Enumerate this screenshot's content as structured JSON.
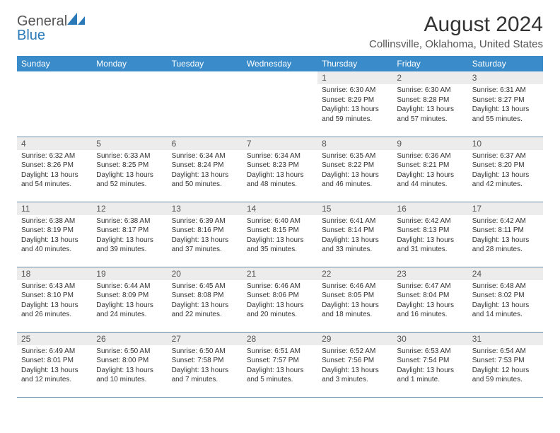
{
  "brand": {
    "part1": "General",
    "part2": "Blue"
  },
  "title": "August 2024",
  "location": "Collinsville, Oklahoma, United States",
  "colors": {
    "header_bg": "#3a8bc9",
    "header_text": "#ffffff",
    "daynum_bg": "#ececec",
    "row_border": "#6a8aa8",
    "logo_blue": "#2a7ab9"
  },
  "layout": {
    "cols": 7,
    "rows": 5,
    "first_day_col": 4
  },
  "weekdays": [
    "Sunday",
    "Monday",
    "Tuesday",
    "Wednesday",
    "Thursday",
    "Friday",
    "Saturday"
  ],
  "days": [
    {
      "n": 1,
      "sr": "6:30 AM",
      "ss": "8:29 PM",
      "dl": "13 hours and 59 minutes."
    },
    {
      "n": 2,
      "sr": "6:30 AM",
      "ss": "8:28 PM",
      "dl": "13 hours and 57 minutes."
    },
    {
      "n": 3,
      "sr": "6:31 AM",
      "ss": "8:27 PM",
      "dl": "13 hours and 55 minutes."
    },
    {
      "n": 4,
      "sr": "6:32 AM",
      "ss": "8:26 PM",
      "dl": "13 hours and 54 minutes."
    },
    {
      "n": 5,
      "sr": "6:33 AM",
      "ss": "8:25 PM",
      "dl": "13 hours and 52 minutes."
    },
    {
      "n": 6,
      "sr": "6:34 AM",
      "ss": "8:24 PM",
      "dl": "13 hours and 50 minutes."
    },
    {
      "n": 7,
      "sr": "6:34 AM",
      "ss": "8:23 PM",
      "dl": "13 hours and 48 minutes."
    },
    {
      "n": 8,
      "sr": "6:35 AM",
      "ss": "8:22 PM",
      "dl": "13 hours and 46 minutes."
    },
    {
      "n": 9,
      "sr": "6:36 AM",
      "ss": "8:21 PM",
      "dl": "13 hours and 44 minutes."
    },
    {
      "n": 10,
      "sr": "6:37 AM",
      "ss": "8:20 PM",
      "dl": "13 hours and 42 minutes."
    },
    {
      "n": 11,
      "sr": "6:38 AM",
      "ss": "8:19 PM",
      "dl": "13 hours and 40 minutes."
    },
    {
      "n": 12,
      "sr": "6:38 AM",
      "ss": "8:17 PM",
      "dl": "13 hours and 39 minutes."
    },
    {
      "n": 13,
      "sr": "6:39 AM",
      "ss": "8:16 PM",
      "dl": "13 hours and 37 minutes."
    },
    {
      "n": 14,
      "sr": "6:40 AM",
      "ss": "8:15 PM",
      "dl": "13 hours and 35 minutes."
    },
    {
      "n": 15,
      "sr": "6:41 AM",
      "ss": "8:14 PM",
      "dl": "13 hours and 33 minutes."
    },
    {
      "n": 16,
      "sr": "6:42 AM",
      "ss": "8:13 PM",
      "dl": "13 hours and 31 minutes."
    },
    {
      "n": 17,
      "sr": "6:42 AM",
      "ss": "8:11 PM",
      "dl": "13 hours and 28 minutes."
    },
    {
      "n": 18,
      "sr": "6:43 AM",
      "ss": "8:10 PM",
      "dl": "13 hours and 26 minutes."
    },
    {
      "n": 19,
      "sr": "6:44 AM",
      "ss": "8:09 PM",
      "dl": "13 hours and 24 minutes."
    },
    {
      "n": 20,
      "sr": "6:45 AM",
      "ss": "8:08 PM",
      "dl": "13 hours and 22 minutes."
    },
    {
      "n": 21,
      "sr": "6:46 AM",
      "ss": "8:06 PM",
      "dl": "13 hours and 20 minutes."
    },
    {
      "n": 22,
      "sr": "6:46 AM",
      "ss": "8:05 PM",
      "dl": "13 hours and 18 minutes."
    },
    {
      "n": 23,
      "sr": "6:47 AM",
      "ss": "8:04 PM",
      "dl": "13 hours and 16 minutes."
    },
    {
      "n": 24,
      "sr": "6:48 AM",
      "ss": "8:02 PM",
      "dl": "13 hours and 14 minutes."
    },
    {
      "n": 25,
      "sr": "6:49 AM",
      "ss": "8:01 PM",
      "dl": "13 hours and 12 minutes."
    },
    {
      "n": 26,
      "sr": "6:50 AM",
      "ss": "8:00 PM",
      "dl": "13 hours and 10 minutes."
    },
    {
      "n": 27,
      "sr": "6:50 AM",
      "ss": "7:58 PM",
      "dl": "13 hours and 7 minutes."
    },
    {
      "n": 28,
      "sr": "6:51 AM",
      "ss": "7:57 PM",
      "dl": "13 hours and 5 minutes."
    },
    {
      "n": 29,
      "sr": "6:52 AM",
      "ss": "7:56 PM",
      "dl": "13 hours and 3 minutes."
    },
    {
      "n": 30,
      "sr": "6:53 AM",
      "ss": "7:54 PM",
      "dl": "13 hours and 1 minute."
    },
    {
      "n": 31,
      "sr": "6:54 AM",
      "ss": "7:53 PM",
      "dl": "12 hours and 59 minutes."
    }
  ],
  "labels": {
    "sunrise": "Sunrise: ",
    "sunset": "Sunset: ",
    "daylight": "Daylight: "
  }
}
